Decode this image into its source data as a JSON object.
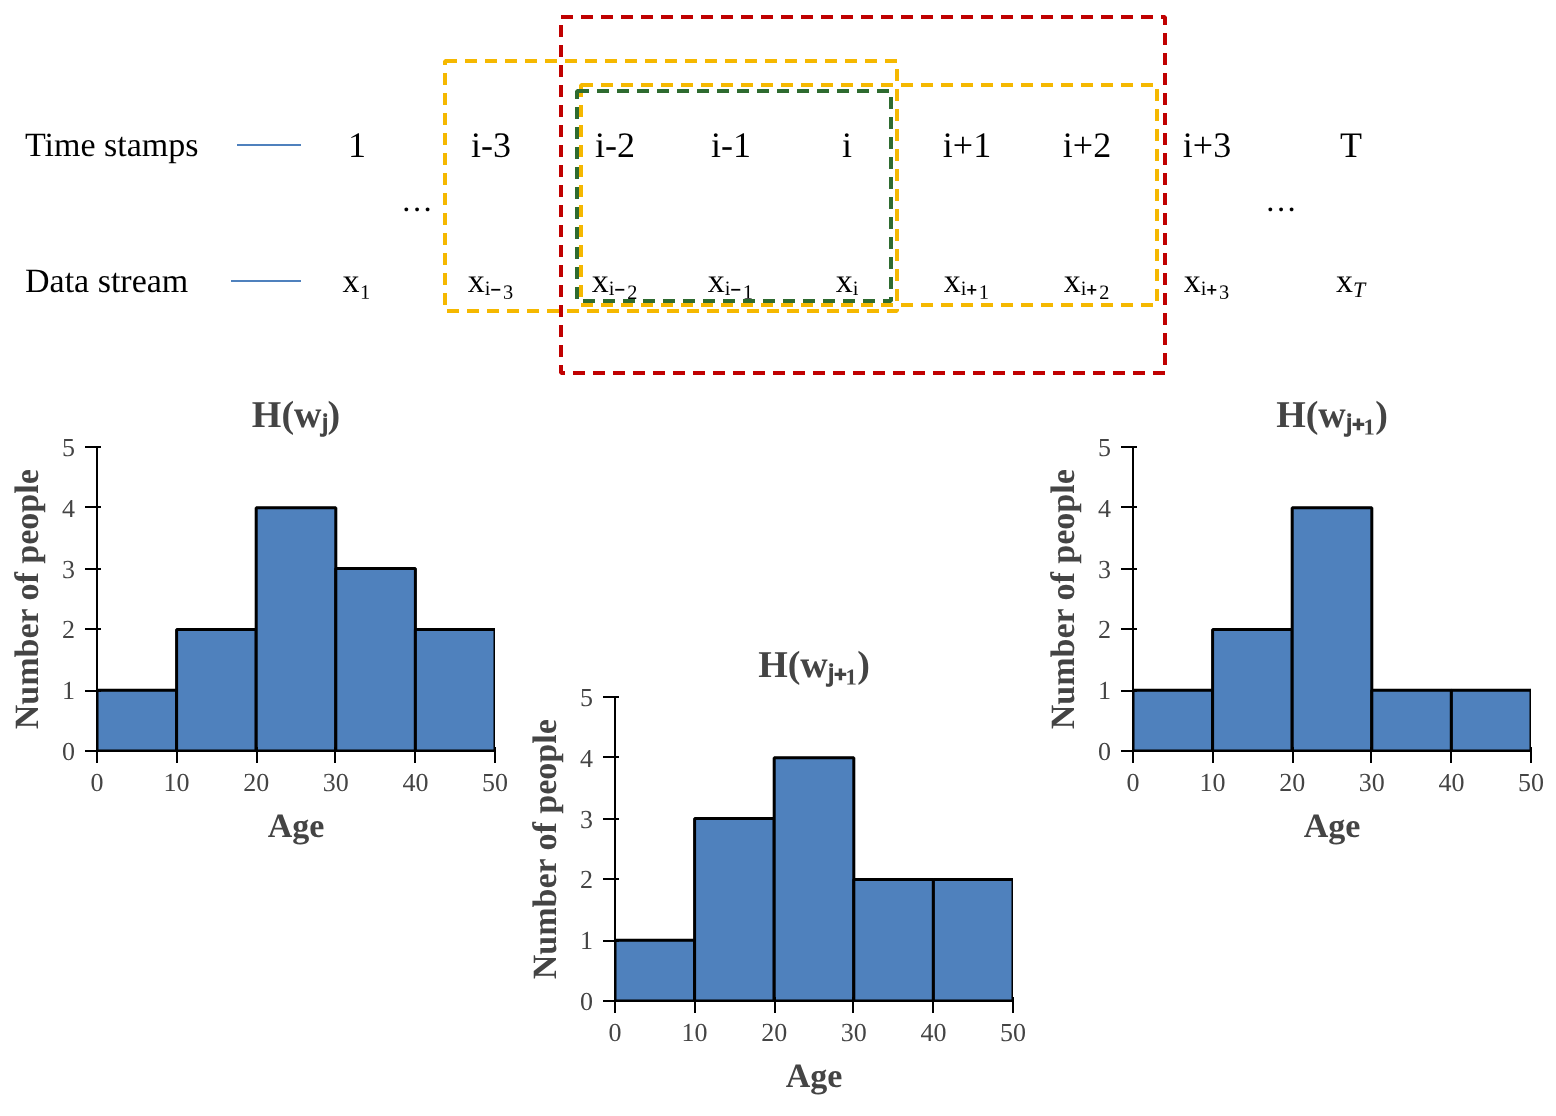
{
  "chart_data": [
    {
      "type": "other",
      "annotations": [
        "Time stamps",
        "Data stream",
        "1",
        "i-3",
        "i-2",
        "i-1",
        "i",
        "i+1",
        "i+2",
        "i+3",
        "T",
        "x₁",
        "xᵢ₋₃",
        "xᵢ₋₂",
        "xᵢ₋₁",
        "xᵢ",
        "xᵢ₊₁",
        "xᵢ₊₂",
        "xᵢ₊₃",
        "x$_{T}$",
        "···",
        "···"
      ]
    },
    {
      "type": "histogram",
      "title": "H(wⱼ)",
      "xlabel": "Age",
      "ylabel": "Number of people",
      "bins": [
        0,
        10,
        20,
        30,
        40,
        50
      ],
      "values": [
        1,
        2,
        4,
        3,
        2
      ],
      "color": "#4f81bd",
      "xlim": [
        0,
        50
      ],
      "ylim": [
        0,
        5
      ],
      "xticks": [
        0,
        10,
        20,
        30,
        40,
        50
      ],
      "yticks": [
        0,
        1,
        2,
        3,
        4,
        5
      ],
      "grid": false
    },
    {
      "type": "histogram",
      "title": "H(wⱼ₊₁)",
      "xlabel": "Age",
      "ylabel": "Number of people",
      "bins": [
        0,
        10,
        20,
        30,
        40,
        50
      ],
      "values": [
        1,
        3,
        4,
        2,
        2
      ],
      "color": "#4f81bd",
      "xlim": [
        0,
        50
      ],
      "ylim": [
        0,
        5
      ],
      "xticks": [
        0,
        10,
        20,
        30,
        40,
        50
      ],
      "yticks": [
        0,
        1,
        2,
        3,
        4,
        5
      ],
      "grid": false
    },
    {
      "type": "histogram",
      "title": "H(wⱼ₊₁)",
      "xlabel": "Age",
      "ylabel": "Number of people",
      "bins": [
        0,
        10,
        20,
        30,
        40,
        50
      ],
      "values": [
        1,
        2,
        4,
        1,
        1
      ],
      "color": "#4f81bd",
      "xlim": [
        0,
        50
      ],
      "ylim": [
        0,
        5
      ],
      "xticks": [
        0,
        10,
        20,
        30,
        40,
        50
      ],
      "yticks": [
        0,
        1,
        2,
        3,
        4,
        5
      ],
      "grid": false
    }
  ]
}
